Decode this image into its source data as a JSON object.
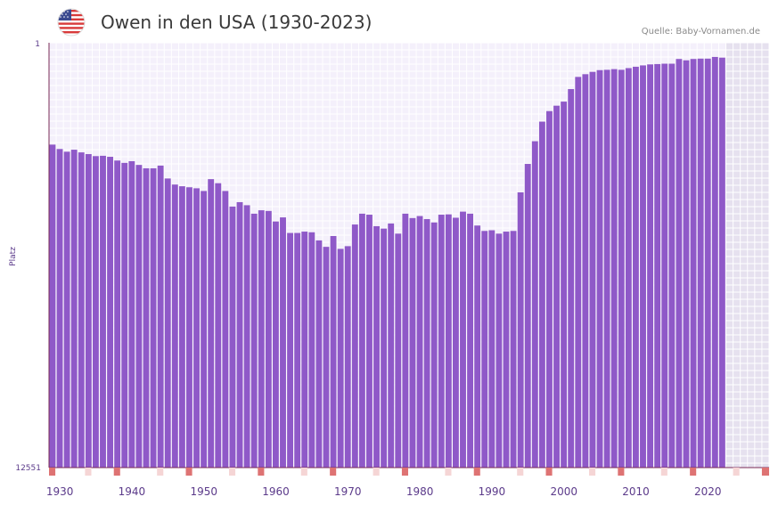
{
  "header": {
    "title": "Owen in den USA (1930-2023)",
    "source": "Quelle: Baby-Vornamen.de",
    "flag_icon": "usa-flag-icon"
  },
  "chart_data": {
    "type": "bar",
    "title": "Owen in den USA (1930-2023)",
    "ylabel": "Platz",
    "xlabel": "",
    "y_axis_inverted": true,
    "ylim": [
      12551,
      1
    ],
    "ytick_labels": [
      "1",
      "12551"
    ],
    "xticks": [
      1930,
      1940,
      1950,
      1960,
      1970,
      1980,
      1990,
      2000,
      2010,
      2020
    ],
    "xlim": [
      1929,
      2029
    ],
    "future_region_from": 2023,
    "colors": {
      "bar": "#8f59c8",
      "grid": "#e9e3f6",
      "axis": "#7a2a55",
      "marker": "#de7373",
      "marker_light": "#f5d5d5",
      "future_shade": "#e6e1ef"
    },
    "years": [
      1929,
      1930,
      1931,
      1932,
      1933,
      1934,
      1935,
      1936,
      1937,
      1938,
      1939,
      1940,
      1941,
      1942,
      1943,
      1944,
      1945,
      1946,
      1947,
      1948,
      1949,
      1950,
      1951,
      1952,
      1953,
      1954,
      1955,
      1956,
      1957,
      1958,
      1959,
      1960,
      1961,
      1962,
      1963,
      1964,
      1965,
      1966,
      1967,
      1968,
      1969,
      1970,
      1971,
      1972,
      1973,
      1974,
      1975,
      1976,
      1977,
      1978,
      1979,
      1980,
      1981,
      1982,
      1983,
      1984,
      1985,
      1986,
      1987,
      1988,
      1989,
      1990,
      1991,
      1992,
      1993,
      1994,
      1995,
      1996,
      1997,
      1998,
      1999,
      2000,
      2001,
      2002,
      2003,
      2004,
      2005,
      2006,
      2007,
      2008,
      2009,
      2010,
      2011,
      2012,
      2013,
      2014,
      2015,
      2016,
      2017,
      2018,
      2019,
      2020,
      2021,
      2022
    ],
    "values": [
      3010,
      3140,
      3220,
      3160,
      3240,
      3290,
      3350,
      3340,
      3370,
      3480,
      3550,
      3500,
      3610,
      3710,
      3710,
      3630,
      4010,
      4190,
      4240,
      4270,
      4300,
      4380,
      4030,
      4150,
      4380,
      4840,
      4710,
      4800,
      5050,
      4950,
      4970,
      5280,
      5160,
      5620,
      5620,
      5580,
      5600,
      5840,
      6030,
      5710,
      6090,
      6010,
      5370,
      5050,
      5080,
      5420,
      5490,
      5340,
      5640,
      5050,
      5180,
      5120,
      5210,
      5310,
      5080,
      5070,
      5170,
      4990,
      5050,
      5400,
      5560,
      5540,
      5640,
      5580,
      5560,
      4420,
      3580,
      2910,
      2330,
      2020,
      1860,
      1740,
      1370,
      1010,
      930,
      860,
      810,
      800,
      780,
      800,
      750,
      710,
      670,
      640,
      630,
      620,
      620,
      480,
      520,
      480,
      470,
      470,
      420,
      440
    ]
  }
}
